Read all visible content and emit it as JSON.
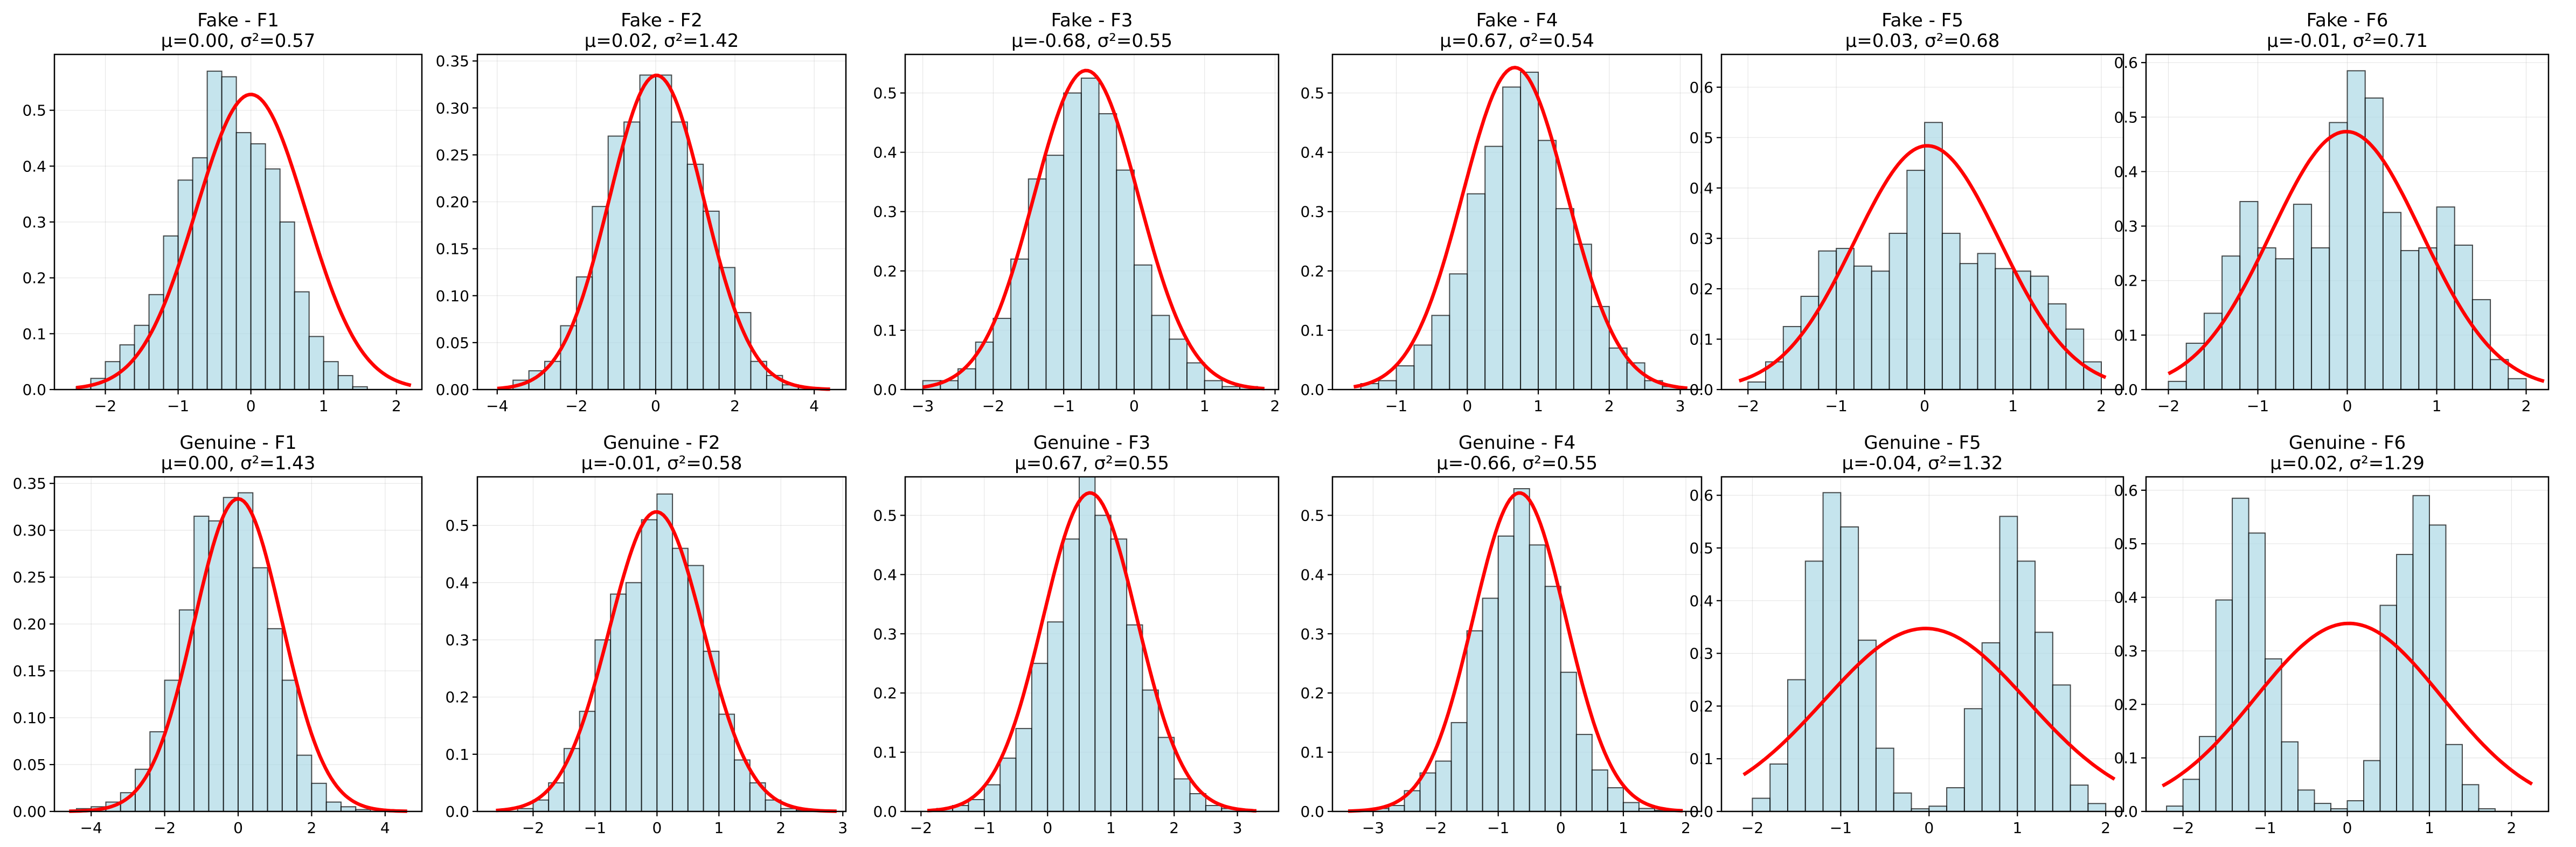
{
  "chart_data": [
    {
      "type": "bar",
      "title": "Fake - F1",
      "subtitle": "μ=0.00, σ²=0.57",
      "xlim": [
        -2.7,
        2.35
      ],
      "ylim": [
        0,
        0.6
      ],
      "xticks": [
        -2,
        -1,
        0,
        1,
        2
      ],
      "yticks": [
        0.0,
        0.1,
        0.2,
        0.3,
        0.4,
        0.5
      ],
      "ytick_labels": [
        "0.0",
        "0.1",
        "0.2",
        "0.3",
        "0.4",
        "0.5"
      ],
      "bin_edges": [
        -2.4,
        -2.2,
        -2.0,
        -1.8,
        -1.6,
        -1.4,
        -1.2,
        -1.0,
        -0.8,
        -0.6,
        -0.4,
        -0.2,
        0.0,
        0.2,
        0.4,
        0.6,
        0.8,
        1.0,
        1.2,
        1.4,
        1.6,
        1.8,
        2.0
      ],
      "values": [
        0.005,
        0.02,
        0.05,
        0.08,
        0.115,
        0.17,
        0.275,
        0.375,
        0.415,
        0.57,
        0.56,
        0.46,
        0.44,
        0.395,
        0.3,
        0.175,
        0.095,
        0.05,
        0.025,
        0.005,
        0.0,
        0.0
      ],
      "fit": {
        "mu": 0.0,
        "var": 0.57,
        "x_range": [
          -2.4,
          2.2
        ]
      }
    },
    {
      "type": "bar",
      "title": "Fake - F2",
      "subtitle": "μ=0.02, σ²=1.42",
      "xlim": [
        -4.5,
        4.8
      ],
      "ylim": [
        0,
        0.357
      ],
      "xticks": [
        -4,
        -2,
        0,
        2,
        4
      ],
      "yticks": [
        0.0,
        0.05,
        0.1,
        0.15,
        0.2,
        0.25,
        0.3,
        0.35
      ],
      "ytick_labels": [
        "0.00",
        "0.05",
        "0.10",
        "0.15",
        "0.20",
        "0.25",
        "0.30",
        "0.35"
      ],
      "bin_edges": [
        -4.0,
        -3.6,
        -3.2,
        -2.8,
        -2.4,
        -2.0,
        -1.6,
        -1.2,
        -0.8,
        -0.4,
        0.0,
        0.4,
        0.8,
        1.2,
        1.6,
        2.0,
        2.4,
        2.8,
        3.2,
        3.6,
        4.0,
        4.4
      ],
      "values": [
        0.0,
        0.01,
        0.02,
        0.03,
        0.068,
        0.12,
        0.195,
        0.27,
        0.285,
        0.335,
        0.335,
        0.285,
        0.24,
        0.19,
        0.13,
        0.082,
        0.03,
        0.015,
        0.005,
        0.002,
        0.0
      ],
      "fit": {
        "mu": 0.02,
        "var": 1.42,
        "x_range": [
          -4.0,
          4.4
        ]
      }
    },
    {
      "type": "bar",
      "title": "Fake - F3",
      "subtitle": "μ=-0.68, σ²=0.55",
      "xlim": [
        -3.25,
        2.05
      ],
      "ylim": [
        0,
        0.565
      ],
      "xticks": [
        -3,
        -2,
        -1,
        0,
        1,
        2
      ],
      "yticks": [
        0.0,
        0.1,
        0.2,
        0.3,
        0.4,
        0.5
      ],
      "ytick_labels": [
        "0.0",
        "0.1",
        "0.2",
        "0.3",
        "0.4",
        "0.5"
      ],
      "bin_edges": [
        -3.0,
        -2.75,
        -2.5,
        -2.25,
        -2.0,
        -1.75,
        -1.5,
        -1.25,
        -1.0,
        -0.75,
        -0.5,
        -0.25,
        0.0,
        0.25,
        0.5,
        0.75,
        1.0,
        1.25,
        1.5,
        1.75
      ],
      "values": [
        0.015,
        0.015,
        0.035,
        0.08,
        0.12,
        0.22,
        0.355,
        0.395,
        0.5,
        0.525,
        0.465,
        0.37,
        0.21,
        0.125,
        0.085,
        0.045,
        0.015,
        0.005,
        0.005
      ],
      "fit": {
        "mu": -0.68,
        "var": 0.55,
        "x_range": [
          -3.0,
          1.85
        ]
      }
    },
    {
      "type": "bar",
      "title": "Fake - F4",
      "subtitle": "μ=0.67, σ²=0.54",
      "xlim": [
        -1.9,
        3.3
      ],
      "ylim": [
        0,
        0.565
      ],
      "xticks": [
        -1,
        0,
        1,
        2,
        3
      ],
      "yticks": [
        0.0,
        0.1,
        0.2,
        0.3,
        0.4,
        0.5
      ],
      "ytick_labels": [
        "0.0",
        "0.1",
        "0.2",
        "0.3",
        "0.4",
        "0.5"
      ],
      "bin_edges": [
        -1.5,
        -1.25,
        -1.0,
        -0.75,
        -0.5,
        -0.25,
        0.0,
        0.25,
        0.5,
        0.75,
        1.0,
        1.25,
        1.5,
        1.75,
        2.0,
        2.25,
        2.5,
        2.75,
        3.0
      ],
      "values": [
        0.01,
        0.015,
        0.04,
        0.075,
        0.125,
        0.195,
        0.33,
        0.41,
        0.51,
        0.535,
        0.42,
        0.305,
        0.245,
        0.14,
        0.07,
        0.045,
        0.015,
        0.005
      ],
      "fit": {
        "mu": 0.67,
        "var": 0.54,
        "x_range": [
          -1.6,
          3.1
        ]
      }
    },
    {
      "type": "bar",
      "title": "Fake - F5",
      "subtitle": "μ=0.03, σ²=0.68",
      "xlim": [
        -2.3,
        2.25
      ],
      "ylim": [
        0,
        0.665
      ],
      "xticks": [
        -2,
        -1,
        0,
        1,
        2
      ],
      "yticks": [
        0.0,
        0.1,
        0.2,
        0.3,
        0.4,
        0.5,
        0.6
      ],
      "ytick_labels": [
        "0.0",
        "0.1",
        "0.2",
        "0.3",
        "0.4",
        "0.5",
        "0.6"
      ],
      "bin_edges": [
        -2.0,
        -1.8,
        -1.6,
        -1.4,
        -1.2,
        -1.0,
        -0.8,
        -0.6,
        -0.4,
        -0.2,
        0.0,
        0.2,
        0.4,
        0.6,
        0.8,
        1.0,
        1.2,
        1.4,
        1.6,
        1.8,
        2.0
      ],
      "values": [
        0.015,
        0.055,
        0.125,
        0.185,
        0.275,
        0.28,
        0.245,
        0.235,
        0.31,
        0.435,
        0.53,
        0.31,
        0.25,
        0.27,
        0.24,
        0.235,
        0.225,
        0.17,
        0.12,
        0.055
      ],
      "fit": {
        "mu": 0.03,
        "var": 0.68,
        "x_range": [
          -2.1,
          2.05
        ]
      }
    },
    {
      "type": "bar",
      "title": "Fake - F6",
      "subtitle": "μ=-0.01, σ²=0.71",
      "xlim": [
        -2.25,
        2.25
      ],
      "ylim": [
        0,
        0.615
      ],
      "xticks": [
        -2,
        -1,
        0,
        1,
        2
      ],
      "yticks": [
        0.0,
        0.1,
        0.2,
        0.3,
        0.4,
        0.5,
        0.6
      ],
      "ytick_labels": [
        "0.0",
        "0.1",
        "0.2",
        "0.3",
        "0.4",
        "0.5",
        "0.6"
      ],
      "bin_edges": [
        -2.0,
        -1.8,
        -1.6,
        -1.4,
        -1.2,
        -1.0,
        -0.8,
        -0.6,
        -0.4,
        -0.2,
        0.0,
        0.2,
        0.4,
        0.6,
        0.8,
        1.0,
        1.2,
        1.4,
        1.6,
        1.8,
        2.0
      ],
      "values": [
        0.015,
        0.085,
        0.14,
        0.245,
        0.345,
        0.26,
        0.24,
        0.34,
        0.26,
        0.49,
        0.585,
        0.535,
        0.325,
        0.255,
        0.26,
        0.335,
        0.265,
        0.165,
        0.055,
        0.02
      ],
      "fit": {
        "mu": -0.01,
        "var": 0.71,
        "x_range": [
          -2.0,
          2.2
        ]
      }
    },
    {
      "type": "bar",
      "title": "Genuine - F1",
      "subtitle": "μ=0.00, σ²=1.43",
      "xlim": [
        -5.0,
        5.0
      ],
      "ylim": [
        0,
        0.357
      ],
      "xticks": [
        -4,
        -2,
        0,
        2,
        4
      ],
      "yticks": [
        0.0,
        0.05,
        0.1,
        0.15,
        0.2,
        0.25,
        0.3,
        0.35
      ],
      "ytick_labels": [
        "0.00",
        "0.05",
        "0.10",
        "0.15",
        "0.20",
        "0.25",
        "0.30",
        "0.35"
      ],
      "bin_edges": [
        -4.8,
        -4.4,
        -4.0,
        -3.6,
        -3.2,
        -2.8,
        -2.4,
        -2.0,
        -1.6,
        -1.2,
        -0.8,
        -0.4,
        0.0,
        0.4,
        0.8,
        1.2,
        1.6,
        2.0,
        2.4,
        2.8,
        3.2,
        3.6,
        4.0,
        4.4
      ],
      "values": [
        0.0,
        0.003,
        0.005,
        0.01,
        0.02,
        0.045,
        0.085,
        0.14,
        0.215,
        0.315,
        0.31,
        0.335,
        0.34,
        0.26,
        0.195,
        0.14,
        0.06,
        0.03,
        0.01,
        0.005,
        0.002,
        0.0,
        0.0
      ],
      "fit": {
        "mu": 0.0,
        "var": 1.43,
        "x_range": [
          -4.6,
          4.6
        ]
      }
    },
    {
      "type": "bar",
      "title": "Genuine - F2",
      "subtitle": "μ=-0.01, σ²=0.58",
      "xlim": [
        -2.9,
        3.05
      ],
      "ylim": [
        0,
        0.585
      ],
      "xticks": [
        -2,
        -1,
        0,
        1,
        2,
        3
      ],
      "yticks": [
        0.0,
        0.1,
        0.2,
        0.3,
        0.4,
        0.5
      ],
      "ytick_labels": [
        "0.0",
        "0.1",
        "0.2",
        "0.3",
        "0.4",
        "0.5"
      ],
      "bin_edges": [
        -2.5,
        -2.25,
        -2.0,
        -1.75,
        -1.5,
        -1.25,
        -1.0,
        -0.75,
        -0.5,
        -0.25,
        0.0,
        0.25,
        0.5,
        0.75,
        1.0,
        1.25,
        1.5,
        1.75,
        2.0,
        2.25,
        2.5,
        2.75,
        3.0
      ],
      "values": [
        0.0,
        0.005,
        0.02,
        0.05,
        0.11,
        0.175,
        0.3,
        0.38,
        0.4,
        0.51,
        0.555,
        0.46,
        0.43,
        0.28,
        0.17,
        0.09,
        0.05,
        0.02,
        0.005,
        0.002,
        0.0,
        0.0
      ],
      "fit": {
        "mu": -0.01,
        "var": 0.58,
        "x_range": [
          -2.6,
          2.9
        ]
      }
    },
    {
      "type": "bar",
      "title": "Genuine - F3",
      "subtitle": "μ=0.67, σ²=0.55",
      "xlim": [
        -2.25,
        3.65
      ],
      "ylim": [
        0,
        0.565
      ],
      "xticks": [
        -2,
        -1,
        0,
        1,
        2,
        3
      ],
      "yticks": [
        0.0,
        0.1,
        0.2,
        0.3,
        0.4,
        0.5
      ],
      "ytick_labels": [
        "0.0",
        "0.1",
        "0.2",
        "0.3",
        "0.4",
        "0.5"
      ],
      "bin_edges": [
        -1.75,
        -1.5,
        -1.25,
        -1.0,
        -0.75,
        -0.5,
        -0.25,
        0.0,
        0.25,
        0.5,
        0.75,
        1.0,
        1.25,
        1.5,
        1.75,
        2.0,
        2.25,
        2.5,
        2.75,
        3.0
      ],
      "values": [
        0.005,
        0.01,
        0.02,
        0.045,
        0.09,
        0.14,
        0.25,
        0.32,
        0.46,
        0.565,
        0.5,
        0.46,
        0.315,
        0.205,
        0.125,
        0.055,
        0.03,
        0.01,
        0.005
      ],
      "fit": {
        "mu": 0.67,
        "var": 0.55,
        "x_range": [
          -1.9,
          3.3
        ]
      }
    },
    {
      "type": "bar",
      "title": "Genuine - F4",
      "subtitle": "μ=-0.66, σ²=0.55",
      "xlim": [
        -3.65,
        2.25
      ],
      "ylim": [
        0,
        0.565
      ],
      "xticks": [
        -3,
        -2,
        -1,
        0,
        1,
        2
      ],
      "yticks": [
        0.0,
        0.1,
        0.2,
        0.3,
        0.4,
        0.5
      ],
      "ytick_labels": [
        "0.0",
        "0.1",
        "0.2",
        "0.3",
        "0.4",
        "0.5"
      ],
      "bin_edges": [
        -3.0,
        -2.75,
        -2.5,
        -2.25,
        -2.0,
        -1.75,
        -1.5,
        -1.25,
        -1.0,
        -0.75,
        -0.5,
        -0.25,
        0.0,
        0.25,
        0.5,
        0.75,
        1.0,
        1.25,
        1.5,
        1.75
      ],
      "values": [
        0.005,
        0.01,
        0.035,
        0.065,
        0.085,
        0.15,
        0.305,
        0.36,
        0.465,
        0.545,
        0.45,
        0.38,
        0.235,
        0.13,
        0.07,
        0.04,
        0.015,
        0.005,
        0.002
      ],
      "fit": {
        "mu": -0.66,
        "var": 0.55,
        "x_range": [
          -3.4,
          1.95
        ]
      }
    },
    {
      "type": "bar",
      "title": "Genuine - F5",
      "subtitle": "μ=-0.04, σ²=1.32",
      "xlim": [
        -2.35,
        2.2
      ],
      "ylim": [
        0,
        0.635
      ],
      "xticks": [
        -2,
        -1,
        0,
        1,
        2
      ],
      "yticks": [
        0.0,
        0.1,
        0.2,
        0.3,
        0.4,
        0.5,
        0.6
      ],
      "ytick_labels": [
        "0.0",
        "0.1",
        "0.2",
        "0.3",
        "0.4",
        "0.5",
        "0.6"
      ],
      "bin_edges": [
        -2.0,
        -1.8,
        -1.6,
        -1.4,
        -1.2,
        -1.0,
        -0.8,
        -0.6,
        -0.4,
        -0.2,
        0.0,
        0.2,
        0.4,
        0.6,
        0.8,
        1.0,
        1.2,
        1.4,
        1.6,
        1.8,
        2.0
      ],
      "values": [
        0.025,
        0.09,
        0.25,
        0.475,
        0.605,
        0.54,
        0.325,
        0.12,
        0.035,
        0.005,
        0.01,
        0.045,
        0.195,
        0.32,
        0.56,
        0.475,
        0.34,
        0.24,
        0.05,
        0.015
      ],
      "fit": {
        "mu": -0.04,
        "var": 1.32,
        "x_range": [
          -2.1,
          2.1
        ]
      }
    },
    {
      "type": "bar",
      "title": "Genuine - F6",
      "subtitle": "μ=0.02, σ²=1.29",
      "xlim": [
        -2.45,
        2.45
      ],
      "ylim": [
        0,
        0.625
      ],
      "xticks": [
        -2,
        -1,
        0,
        1,
        2
      ],
      "yticks": [
        0.0,
        0.1,
        0.2,
        0.3,
        0.4,
        0.5,
        0.6
      ],
      "ytick_labels": [
        "0.0",
        "0.1",
        "0.2",
        "0.3",
        "0.4",
        "0.5",
        "0.6"
      ],
      "bin_edges": [
        -2.2,
        -2.0,
        -1.8,
        -1.6,
        -1.4,
        -1.2,
        -1.0,
        -0.8,
        -0.6,
        -0.4,
        -0.2,
        0.0,
        0.2,
        0.4,
        0.6,
        0.8,
        1.0,
        1.2,
        1.4,
        1.6,
        1.8,
        2.0,
        2.2
      ],
      "values": [
        0.01,
        0.06,
        0.14,
        0.395,
        0.585,
        0.52,
        0.285,
        0.13,
        0.04,
        0.015,
        0.005,
        0.02,
        0.095,
        0.385,
        0.48,
        0.59,
        0.535,
        0.125,
        0.05,
        0.005,
        0.0,
        0.0
      ],
      "fit": {
        "mu": 0.02,
        "var": 1.29,
        "x_range": [
          -2.25,
          2.25
        ]
      }
    }
  ],
  "colors": {
    "bar_fill": "#add8e6",
    "bar_edge": "#000000",
    "fit_line": "#ff0000",
    "grid": "#b0b0b0"
  }
}
